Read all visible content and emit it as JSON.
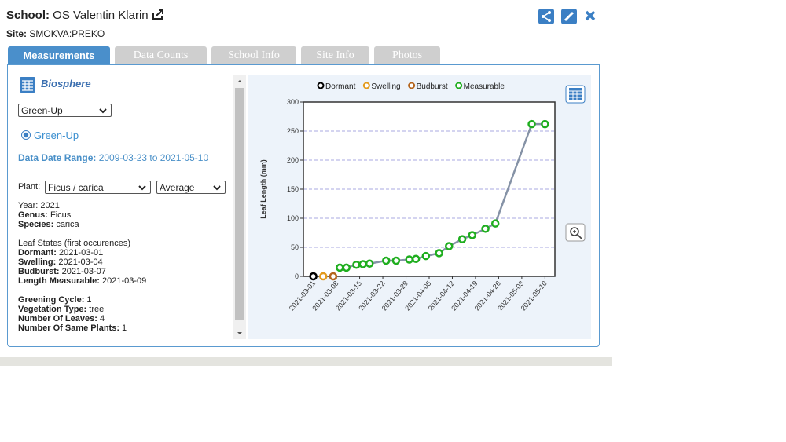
{
  "header": {
    "school_label": "School:",
    "school": "OS Valentin Klarin",
    "site_label": "Site:",
    "site": "SMOKVA:PREKO"
  },
  "tabs": [
    "Measurements",
    "Data Counts",
    "School Info",
    "Site Info",
    "Photos"
  ],
  "panel": {
    "title": "Biosphere",
    "protocol": "Green-Up",
    "option": "Green-Up",
    "date_range_label": "Data Date Range:",
    "date_range": "2009-03-23 to 2021-05-10",
    "plant_label": "Plant:",
    "plant": "Ficus / carica",
    "statistic": "Average",
    "groups": [
      {
        "lines": [
          {
            "label": "Year:",
            "value": "2021"
          },
          {
            "label": "Genus:",
            "value": "Ficus"
          },
          {
            "label": "Species:",
            "value": "carica"
          }
        ]
      },
      {
        "title": "Leaf States (first occurences)",
        "lines": [
          {
            "label": "Dormant:",
            "value": "2021-03-01"
          },
          {
            "label": "Swelling:",
            "value": "2021-03-04"
          },
          {
            "label": "Budburst:",
            "value": "2021-03-07"
          },
          {
            "label": "Length Measurable:",
            "value": "2021-03-09"
          }
        ]
      },
      {
        "lines": [
          {
            "label": "Greening Cycle:",
            "value": "1"
          },
          {
            "label": "Vegetation Type:",
            "value": "tree"
          },
          {
            "label": "Number Of Leaves:",
            "value": "4"
          },
          {
            "label": "Number Of Same Plants:",
            "value": "1"
          }
        ]
      }
    ]
  },
  "chart_data": {
    "type": "line",
    "y_label": "Leaf Length (mm)",
    "xlim": [
      "2021-02-26",
      "2021-05-13"
    ],
    "xticks": [
      "2021-03-01",
      "2021-03-08",
      "2021-03-15",
      "2021-03-22",
      "2021-03-29",
      "2021-04-05",
      "2021-04-12",
      "2021-04-19",
      "2021-04-26",
      "2021-05-03",
      "2021-05-10"
    ],
    "ylim": [
      0,
      300
    ],
    "yticks": [
      0,
      50,
      100,
      150,
      200,
      250,
      300
    ],
    "grid": true,
    "line_color": "#8592a6",
    "series": [
      {
        "name": "Dormant",
        "color": "#000000",
        "x": [
          "2021-03-01"
        ],
        "values": [
          0
        ]
      },
      {
        "name": "Swelling",
        "color": "#e39a1c",
        "x": [
          "2021-03-04"
        ],
        "values": [
          0
        ]
      },
      {
        "name": "Budburst",
        "color": "#b5651d",
        "x": [
          "2021-03-07"
        ],
        "values": [
          0
        ]
      },
      {
        "name": "Measurable",
        "color": "#1fae1f",
        "x": [
          "2021-03-09",
          "2021-03-11",
          "2021-03-14",
          "2021-03-16",
          "2021-03-18",
          "2021-03-23",
          "2021-03-26",
          "2021-03-30",
          "2021-04-01",
          "2021-04-04",
          "2021-04-08",
          "2021-04-11",
          "2021-04-15",
          "2021-04-18",
          "2021-04-22",
          "2021-04-25",
          "2021-05-06",
          "2021-05-10"
        ],
        "values": [
          15,
          15,
          20,
          21,
          22,
          27,
          27,
          29,
          30,
          35,
          40,
          52,
          64,
          71,
          82,
          91,
          262,
          262
        ]
      }
    ]
  }
}
